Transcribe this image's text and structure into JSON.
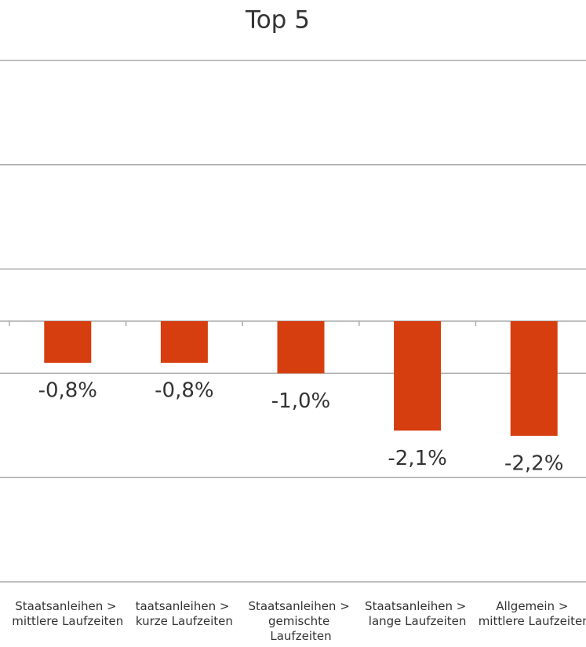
{
  "chart_data": {
    "type": "bar",
    "title": "Top 5",
    "categories": [
      "Staatsanleihen > mittlere Laufzeiten",
      "taatsanleihen > kurze Laufzeiten",
      "Staatsanleihen > gemischte Laufzeiten",
      "Staatsanleihen > lange Laufzeiten",
      "Allgemein > mittlere Laufzeiten"
    ],
    "values": [
      -0.8,
      -0.8,
      -1.0,
      -2.1,
      -2.2
    ],
    "value_labels": [
      "-0,8%",
      "-0,8%",
      "-1,0%",
      "-2,1%",
      "-2,2%"
    ],
    "color": "#d63e0f",
    "ylim": [
      -5,
      5
    ],
    "yticks": [
      -5,
      -3,
      -1,
      1,
      3,
      5
    ],
    "grid": true
  }
}
